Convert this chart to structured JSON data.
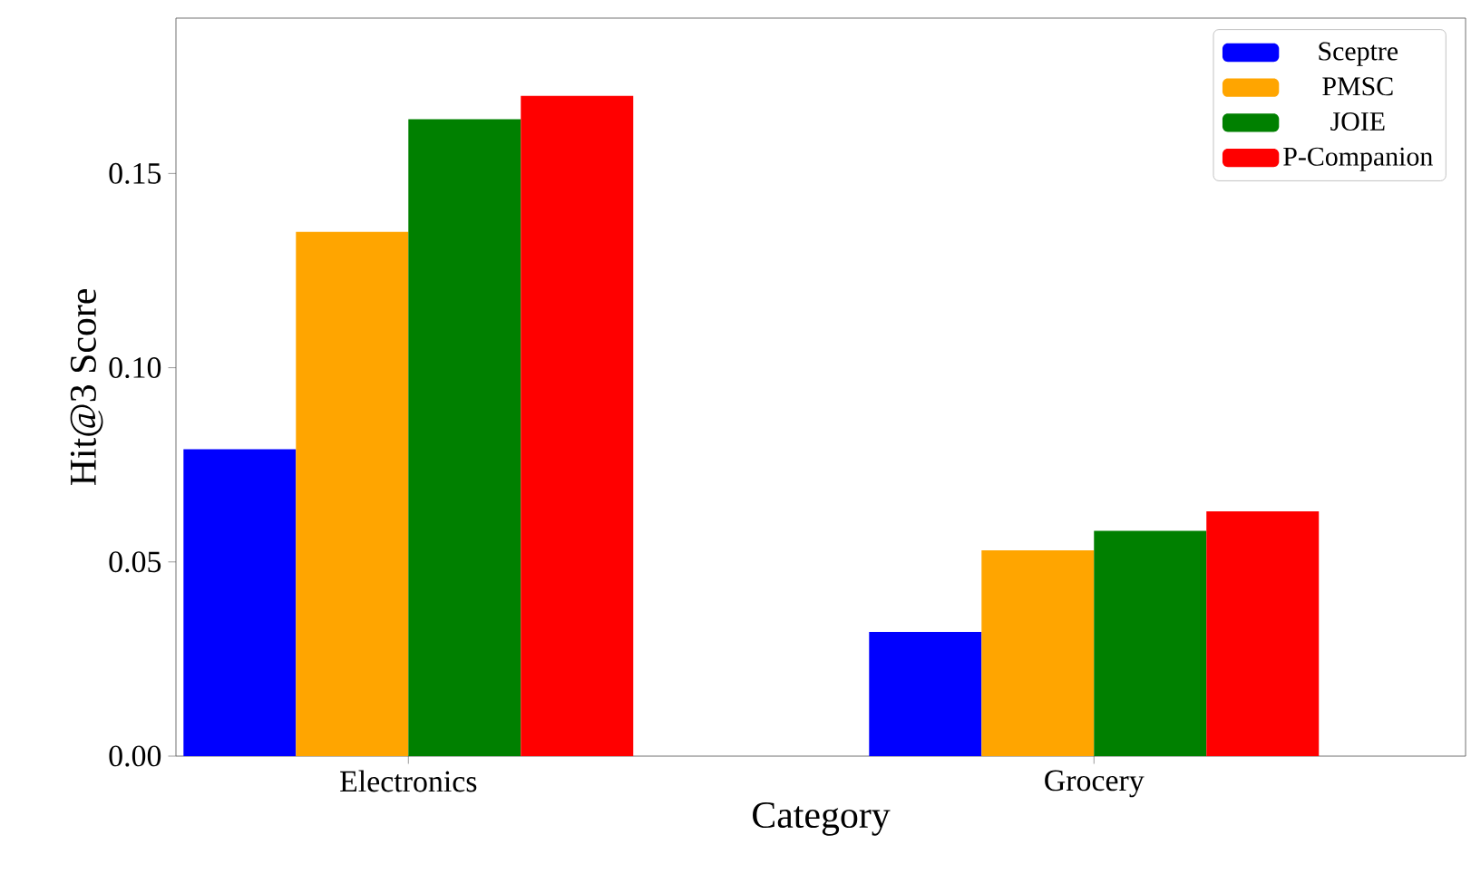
{
  "chart_data": {
    "type": "bar",
    "xlabel": "Category",
    "ylabel": "Hit@3 Score",
    "categories": [
      "Electronics",
      "Grocery"
    ],
    "series": [
      {
        "name": "Sceptre",
        "color": "#0000ff",
        "values": [
          0.079,
          0.032
        ]
      },
      {
        "name": "PMSC",
        "color": "#ffa500",
        "values": [
          0.135,
          0.053
        ]
      },
      {
        "name": "JOIE",
        "color": "#008000",
        "values": [
          0.164,
          0.058
        ]
      },
      {
        "name": "P-Companion",
        "color": "#ff0000",
        "values": [
          0.17,
          0.063
        ]
      }
    ],
    "ylim": [
      0,
      0.19
    ],
    "yticks": [
      {
        "value": 0,
        "label": "0.00"
      },
      {
        "value": 0.05,
        "label": "0.05"
      },
      {
        "value": 0.1,
        "label": "0.10"
      },
      {
        "value": 0.15,
        "label": "0.15"
      }
    ],
    "legend": "top right",
    "grid": false
  }
}
